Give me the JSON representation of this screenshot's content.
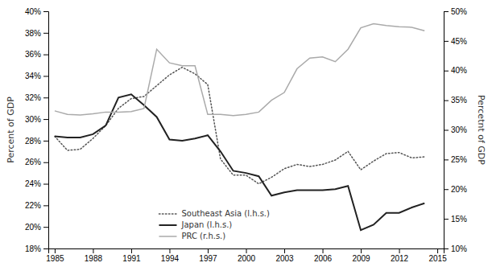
{
  "chart_data": {
    "type": "line",
    "ylabel": "Percent of GDP",
    "y2label": "Percetnt of GDP",
    "x": [
      1985,
      1986,
      1987,
      1988,
      1989,
      1990,
      1991,
      1992,
      1993,
      1994,
      1995,
      1996,
      1997,
      1998,
      1999,
      2000,
      2001,
      2002,
      2003,
      2004,
      2005,
      2006,
      2007,
      2008,
      2009,
      2010,
      2011,
      2012,
      2013,
      2014
    ],
    "series": [
      {
        "name": "Southeast Asia (l.h.s.)",
        "color": "#555555",
        "line_style": "dotted",
        "values": [
          0.284,
          0.271,
          0.272,
          0.282,
          0.294,
          0.31,
          0.319,
          0.321,
          0.331,
          0.341,
          0.348,
          0.342,
          0.332,
          0.263,
          0.248,
          0.248,
          0.24,
          0.246,
          0.254,
          0.258,
          0.256,
          0.258,
          0.262,
          0.27,
          0.253,
          0.261,
          0.268,
          0.269,
          0.264,
          0.265
        ]
      },
      {
        "name": "Japan (l.h.s.)",
        "color": "#222222",
        "line_style": "solid",
        "values": [
          0.284,
          0.283,
          0.283,
          0.286,
          0.294,
          0.32,
          0.323,
          0.313,
          0.302,
          0.281,
          0.28,
          0.282,
          0.285,
          0.27,
          0.252,
          0.25,
          0.247,
          0.229,
          0.232,
          0.234,
          0.234,
          0.234,
          0.235,
          0.238,
          0.197,
          0.202,
          0.213,
          0.213,
          0.218,
          0.222
        ]
      },
      {
        "name": "PRC (r.h.s.)",
        "color": "#aaaaaa",
        "line_style": "solid",
        "axis": "y2",
        "values": [
          0.332,
          0.326,
          0.325,
          0.327,
          0.33,
          0.33,
          0.331,
          0.336,
          0.436,
          0.413,
          0.408,
          0.408,
          0.326,
          0.326,
          0.324,
          0.326,
          0.33,
          0.35,
          0.363,
          0.403,
          0.421,
          0.423,
          0.415,
          0.436,
          0.472,
          0.479,
          0.476,
          0.474,
          0.473,
          0.467
        ]
      }
    ],
    "xlim": [
      1984.5,
      2015.5
    ],
    "xticks": [
      1985,
      1988,
      1991,
      1994,
      1997,
      2000,
      2003,
      2006,
      2009,
      2012,
      2015
    ],
    "ylim": [
      0.18,
      0.4
    ],
    "yticks": [
      {
        "value": 0.18,
        "label": "18%"
      },
      {
        "value": 0.2,
        "label": "20%"
      },
      {
        "value": 0.22,
        "label": "22%"
      },
      {
        "value": 0.24,
        "label": "24%"
      },
      {
        "value": 0.26,
        "label": "26%"
      },
      {
        "value": 0.28,
        "label": "28%"
      },
      {
        "value": 0.3,
        "label": "30%"
      },
      {
        "value": 0.32,
        "label": "32%"
      },
      {
        "value": 0.34,
        "label": "34%"
      },
      {
        "value": 0.36,
        "label": "36%"
      },
      {
        "value": 0.38,
        "label": "38%"
      },
      {
        "value": 0.4,
        "label": "40%"
      }
    ],
    "y2lim": [
      0.1,
      0.5
    ],
    "y2ticks": [
      {
        "value": 0.1,
        "label": "10%"
      },
      {
        "value": 0.15,
        "label": "15%"
      },
      {
        "value": 0.2,
        "label": "20%"
      },
      {
        "value": 0.25,
        "label": "25%"
      },
      {
        "value": 0.3,
        "label": "30%"
      },
      {
        "value": 0.35,
        "label": "35%"
      },
      {
        "value": 0.4,
        "label": "40%"
      },
      {
        "value": 0.45,
        "label": "45%"
      },
      {
        "value": 0.5,
        "label": "50%"
      }
    ],
    "grid": false,
    "legend": "lower left"
  }
}
